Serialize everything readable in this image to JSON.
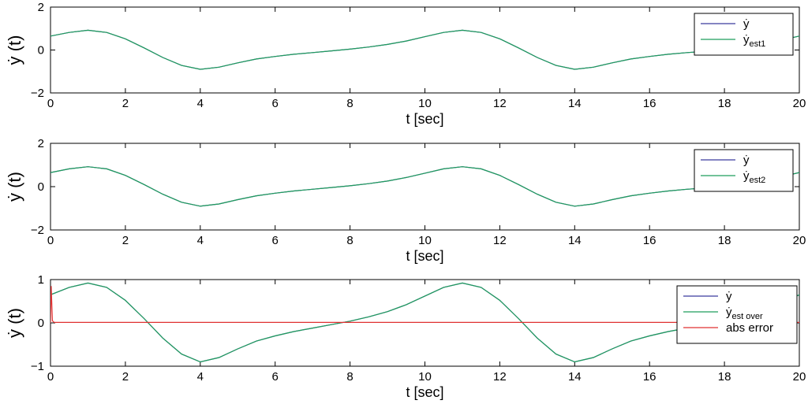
{
  "chart_data": [
    {
      "type": "line",
      "xlabel": "t [sec]",
      "ylabel": "ẏ (t)",
      "xlim": [
        0,
        20
      ],
      "ylim": [
        -2,
        2
      ],
      "xticks": [
        "0",
        "2",
        "4",
        "6",
        "8",
        "10",
        "12",
        "14",
        "16",
        "18",
        "20"
      ],
      "yticks": [
        "−2",
        "0",
        "2"
      ],
      "legend_position": "top-right",
      "colors": {
        "y": "#3b3b9e",
        "est": "#1f9e5c"
      },
      "series": [
        {
          "name": "ẏ",
          "base": "ẏ",
          "sub": "",
          "color": "#3b3b9e"
        },
        {
          "name": "ẏest1",
          "base": "ẏ",
          "sub": "est1",
          "color": "#1f9e5c"
        }
      ],
      "x": [
        0,
        0.5,
        1,
        1.5,
        2,
        2.5,
        3,
        3.5,
        4,
        4.5,
        5,
        5.5,
        6,
        6.5,
        7,
        7.5,
        8,
        8.5,
        9,
        9.5,
        10,
        10.5,
        11,
        11.5,
        12,
        12.5,
        13,
        13.5,
        14,
        14.5,
        15,
        15.5,
        16,
        16.5,
        17,
        17.5,
        18,
        18.5,
        19,
        19.5,
        20
      ],
      "y": [
        0.65,
        0.82,
        0.92,
        0.82,
        0.52,
        0.1,
        -0.35,
        -0.72,
        -0.9,
        -0.8,
        -0.6,
        -0.42,
        -0.3,
        -0.2,
        -0.12,
        -0.04,
        0.04,
        0.14,
        0.26,
        0.42,
        0.62,
        0.82,
        0.92,
        0.82,
        0.52,
        0.1,
        -0.35,
        -0.72,
        -0.9,
        -0.8,
        -0.6,
        -0.42,
        -0.3,
        -0.2,
        -0.12,
        -0.06,
        0,
        0.1,
        0.25,
        0.45,
        0.65
      ]
    },
    {
      "type": "line",
      "xlabel": "t [sec]",
      "ylabel": "ẏ (t)",
      "xlim": [
        0,
        20
      ],
      "ylim": [
        -2,
        2
      ],
      "xticks": [
        "0",
        "2",
        "4",
        "6",
        "8",
        "10",
        "12",
        "14",
        "16",
        "18",
        "20"
      ],
      "yticks": [
        "−2",
        "0",
        "2"
      ],
      "legend_position": "top-right",
      "colors": {
        "y": "#3b3b9e",
        "est": "#1f9e5c"
      },
      "series": [
        {
          "name": "ẏ",
          "base": "ẏ",
          "sub": "",
          "color": "#3b3b9e"
        },
        {
          "name": "ẏest2",
          "base": "ẏ",
          "sub": "est2",
          "color": "#1f9e5c"
        }
      ],
      "x": [
        0,
        0.5,
        1,
        1.5,
        2,
        2.5,
        3,
        3.5,
        4,
        4.5,
        5,
        5.5,
        6,
        6.5,
        7,
        7.5,
        8,
        8.5,
        9,
        9.5,
        10,
        10.5,
        11,
        11.5,
        12,
        12.5,
        13,
        13.5,
        14,
        14.5,
        15,
        15.5,
        16,
        16.5,
        17,
        17.5,
        18,
        18.5,
        19,
        19.5,
        20
      ],
      "y": [
        0.65,
        0.82,
        0.92,
        0.82,
        0.52,
        0.1,
        -0.35,
        -0.72,
        -0.9,
        -0.8,
        -0.6,
        -0.42,
        -0.3,
        -0.2,
        -0.12,
        -0.04,
        0.04,
        0.14,
        0.26,
        0.42,
        0.62,
        0.82,
        0.92,
        0.82,
        0.52,
        0.1,
        -0.35,
        -0.72,
        -0.9,
        -0.8,
        -0.6,
        -0.42,
        -0.3,
        -0.2,
        -0.12,
        -0.06,
        0,
        0.1,
        0.25,
        0.45,
        0.65
      ]
    },
    {
      "type": "line",
      "xlabel": "t [sec]",
      "ylabel": "ẏ (t)",
      "xlim": [
        0,
        20
      ],
      "ylim": [
        -1,
        1
      ],
      "xticks": [
        "0",
        "2",
        "4",
        "6",
        "8",
        "10",
        "12",
        "14",
        "16",
        "18",
        "20"
      ],
      "yticks": [
        "−1",
        "0",
        "1"
      ],
      "legend_position": "top-right",
      "colors": {
        "y": "#3b3b9e",
        "est": "#1f9e5c",
        "err": "#e03030"
      },
      "series": [
        {
          "name": "ẏ",
          "base": "ẏ",
          "sub": "",
          "color": "#3b3b9e"
        },
        {
          "name": "ẏest over",
          "base": "ẏ",
          "sub": "est over",
          "color": "#1f9e5c"
        },
        {
          "name": "abs error",
          "base": "abs error",
          "sub": "",
          "color": "#e03030"
        }
      ],
      "x": [
        0,
        0.5,
        1,
        1.5,
        2,
        2.5,
        3,
        3.5,
        4,
        4.5,
        5,
        5.5,
        6,
        6.5,
        7,
        7.5,
        8,
        8.5,
        9,
        9.5,
        10,
        10.5,
        11,
        11.5,
        12,
        12.5,
        13,
        13.5,
        14,
        14.5,
        15,
        15.5,
        16,
        16.5,
        17,
        17.5,
        18,
        18.5,
        19,
        19.5,
        20
      ],
      "y": [
        0.65,
        0.82,
        0.92,
        0.82,
        0.52,
        0.1,
        -0.35,
        -0.72,
        -0.9,
        -0.8,
        -0.6,
        -0.42,
        -0.3,
        -0.2,
        -0.12,
        -0.04,
        0.04,
        0.14,
        0.26,
        0.42,
        0.62,
        0.82,
        0.92,
        0.82,
        0.52,
        0.1,
        -0.35,
        -0.72,
        -0.9,
        -0.8,
        -0.6,
        -0.42,
        -0.3,
        -0.2,
        -0.12,
        -0.06,
        0,
        0.1,
        0.25,
        0.45,
        0.65
      ],
      "abs_error": {
        "x": [
          0,
          0.02,
          0.05,
          0.1,
          20
        ],
        "y": [
          0,
          0.85,
          0.05,
          0.01,
          0.01
        ]
      }
    }
  ]
}
